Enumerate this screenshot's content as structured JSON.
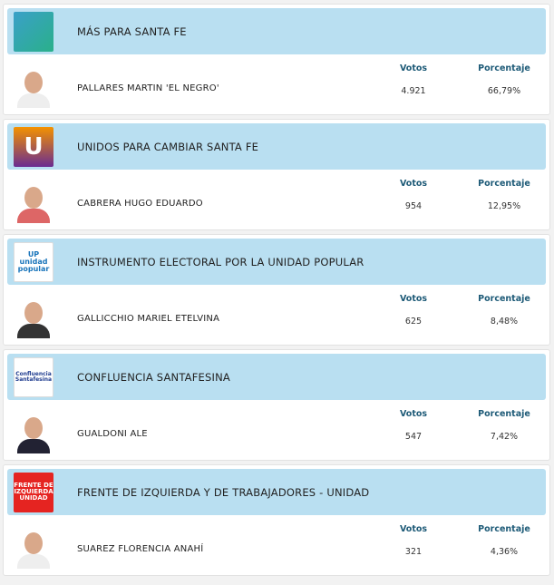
{
  "labels": {
    "votes": "Votos",
    "percent": "Porcentaje"
  },
  "results": [
    {
      "party": "MÁS PARA SANTA FE",
      "logo_text": "",
      "logo_icon": "handshake-logo",
      "logo_bg": "#2aa39a",
      "candidate": "PALLARES MARTIN 'EL NEGRO'",
      "votes": "4.921",
      "percent": "66,79%"
    },
    {
      "party": "UNIDOS PARA CAMBIAR SANTA FE",
      "logo_text": "U",
      "logo_icon": "u-logo",
      "logo_bg": "#6a2c91",
      "candidate": "CABRERA HUGO EDUARDO",
      "votes": "954",
      "percent": "12,95%"
    },
    {
      "party": "INSTRUMENTO ELECTORAL POR LA UNIDAD POPULAR",
      "logo_text": "UP unidad popular",
      "logo_icon": "up-logo",
      "logo_bg": "#ffffff",
      "candidate": "GALLICCHIO MARIEL ETELVINA",
      "votes": "625",
      "percent": "8,48%"
    },
    {
      "party": "CONFLUENCIA SANTAFESINA",
      "logo_text": "Confluencia Santafesina",
      "logo_icon": "confluencia-logo",
      "logo_bg": "#ffffff",
      "candidate": "GUALDONI ALE",
      "votes": "547",
      "percent": "7,42%"
    },
    {
      "party": "FRENTE DE IZQUIERDA Y DE TRABAJADORES - UNIDAD",
      "logo_text": "FRENTE DE IZQUIERDA UNIDAD",
      "logo_icon": "fit-logo",
      "logo_bg": "#e52421",
      "candidate": "SUAREZ FLORENCIA ANAHÍ",
      "votes": "321",
      "percent": "4,36%"
    }
  ]
}
